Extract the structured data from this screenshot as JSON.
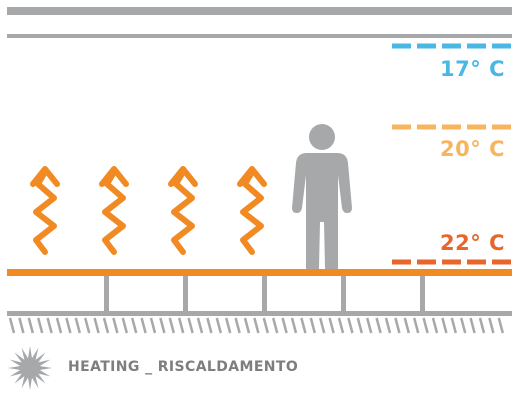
{
  "temperatures": [
    {
      "label": "17° C",
      "color": "#4ab7e5"
    },
    {
      "label": "20° C",
      "color": "#f7b560"
    },
    {
      "label": "22° C",
      "color": "#e8662b"
    }
  ],
  "footer": {
    "label": "HEATING _ RISCALDAMENTO",
    "icon": "sun-burst-icon"
  },
  "colors": {
    "ceiling": "#a7a8aa",
    "floor": "#f28a24",
    "heat_waves": "#f28a24",
    "person": "#a7a8aa",
    "structure": "#a7a8aa",
    "icon": "#a7a8aa"
  }
}
